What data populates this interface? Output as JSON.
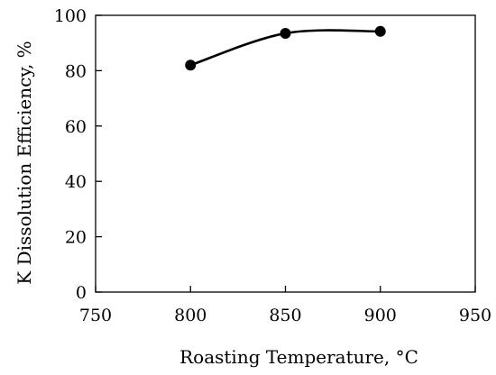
{
  "chart_data": {
    "type": "line",
    "title": "",
    "xlabel": "Roasting Temperature, °C",
    "ylabel": "K Dissolution Efficiency, %",
    "xlim": [
      750,
      950
    ],
    "ylim": [
      0,
      100
    ],
    "x_ticks": [
      750,
      800,
      850,
      900,
      950
    ],
    "y_ticks": [
      0,
      20,
      40,
      60,
      80,
      100
    ],
    "grid": false,
    "legend": "none",
    "line_style": "smooth",
    "series": [
      {
        "x": [
          800,
          850,
          900
        ],
        "values": [
          82,
          93.5,
          94.2
        ],
        "color": "#000000",
        "marker": "circle"
      }
    ]
  }
}
